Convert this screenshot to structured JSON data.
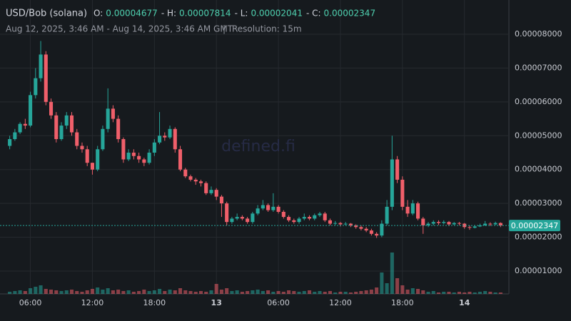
{
  "chart_data": {
    "type": "candlestick",
    "title": "USD/Bob (solana)",
    "stats": [
      {
        "label": "O:",
        "value": 4.677e-05
      },
      {
        "label": "- H:",
        "value": 7.814e-05
      },
      {
        "label": "- L:",
        "value": 2.041e-05
      },
      {
        "label": "- C:",
        "value": 2.347e-05
      }
    ],
    "subtitle": "Aug 12, 2025, 3:46 AM - Aug 14, 2025, 3:46 AM GMT",
    "separator": "|",
    "resolution": "Resolution: 15m",
    "watermark": "defined.fi",
    "last_price": 2.347e-05,
    "up_color": "#26a69a",
    "down_color": "#ef5f6a",
    "xlim": [
      -0.5,
      95.5
    ],
    "xticks": [
      {
        "value": 4,
        "label": "06:00"
      },
      {
        "value": 16,
        "label": "12:00"
      },
      {
        "value": 28,
        "label": "18:00"
      },
      {
        "value": 40,
        "label": "13"
      },
      {
        "value": 52,
        "label": "06:00"
      },
      {
        "value": 64,
        "label": "12:00"
      },
      {
        "value": 76,
        "label": "18:00"
      },
      {
        "value": 88,
        "label": "14"
      }
    ],
    "ylim": [
      3.25e-06,
      8.843e-05
    ],
    "yticks": [
      {
        "value": 1e-05,
        "label": "0.00001000"
      },
      {
        "value": 2e-05,
        "label": "0.00002000"
      },
      {
        "value": 3e-05,
        "label": "0.00003000"
      },
      {
        "value": 4e-05,
        "label": "0.00004000"
      },
      {
        "value": 5e-05,
        "label": "0.00005000"
      },
      {
        "value": 6e-05,
        "label": "0.00006000"
      },
      {
        "value": 7e-05,
        "label": "0.00007000"
      },
      {
        "value": 8e-05,
        "label": "0.00008000"
      }
    ],
    "grid": true,
    "volume_ylim": [
      0,
      100
    ],
    "open": [
      4.7e-05,
      4.9e-05,
      5.1e-05,
      5.35e-05,
      5.3e-05,
      6.2e-05,
      6.7e-05,
      7.4e-05,
      6e-05,
      5.6e-05,
      4.9e-05,
      5.3e-05,
      5.6e-05,
      5.1e-05,
      4.7e-05,
      4.6e-05,
      4.2e-05,
      4e-05,
      4.6e-05,
      5.2e-05,
      5.8e-05,
      5.5e-05,
      4.9e-05,
      4.3e-05,
      4.5e-05,
      4.4e-05,
      4.3e-05,
      4.2e-05,
      4.5e-05,
      4.8e-05,
      5e-05,
      4.95e-05,
      5.2e-05,
      4.6e-05,
      4e-05,
      3.8e-05,
      3.7e-05,
      3.65e-05,
      3.6e-05,
      3.3e-05,
      3.4e-05,
      3.2e-05,
      3e-05,
      2.45e-05,
      2.55e-05,
      2.6e-05,
      2.55e-05,
      2.45e-05,
      2.7e-05,
      2.85e-05,
      2.95e-05,
      2.8e-05,
      2.9e-05,
      2.75e-05,
      2.6e-05,
      2.5e-05,
      2.45e-05,
      2.55e-05,
      2.6e-05,
      2.55e-05,
      2.65e-05,
      2.7e-05,
      2.5e-05,
      2.4e-05,
      2.42e-05,
      2.38e-05,
      2.4e-05,
      2.35e-05,
      2.3e-05,
      2.25e-05,
      2.2e-05,
      2.1e-05,
      2.05e-05,
      2.4e-05,
      2.9e-05,
      4.3e-05,
      3.7e-05,
      2.9e-05,
      2.7e-05,
      3e-05,
      2.55e-05,
      2.35e-05,
      2.4e-05,
      2.45e-05,
      2.42e-05,
      2.45e-05,
      2.38e-05,
      2.42e-05,
      2.4e-05,
      2.3e-05,
      2.28e-05,
      2.32e-05,
      2.35e-05,
      2.4e-05,
      2.38e-05,
      2.42e-05
    ],
    "high": [
      5e-05,
      5.2e-05,
      5.4e-05,
      5.5e-05,
      6.3e-05,
      7e-05,
      7.8e-05,
      7.5e-05,
      6.1e-05,
      5.7e-05,
      5.4e-05,
      5.7e-05,
      5.7e-05,
      5.2e-05,
      4.8e-05,
      4.7e-05,
      4.2e-05,
      4.7e-05,
      5.3e-05,
      6.4e-05,
      5.9e-05,
      5.6e-05,
      4.95e-05,
      4.6e-05,
      4.6e-05,
      4.5e-05,
      4.35e-05,
      4.6e-05,
      4.9e-05,
      5.7e-05,
      5.1e-05,
      5.3e-05,
      5.25e-05,
      4.7e-05,
      4.05e-05,
      3.85e-05,
      3.75e-05,
      3.7e-05,
      3.65e-05,
      3.5e-05,
      3.45e-05,
      3.25e-05,
      3.05e-05,
      2.6e-05,
      2.7e-05,
      2.65e-05,
      2.6e-05,
      2.75e-05,
      2.95e-05,
      3.1e-05,
      3e-05,
      3.3e-05,
      2.95e-05,
      2.8e-05,
      2.65e-05,
      2.55e-05,
      2.6e-05,
      2.7e-05,
      2.65e-05,
      2.7e-05,
      2.75e-05,
      2.75e-05,
      2.55e-05,
      2.48e-05,
      2.45e-05,
      2.45e-05,
      2.42e-05,
      2.38e-05,
      2.35e-05,
      2.3e-05,
      2.25e-05,
      2.15e-05,
      2.5e-05,
      3.1e-05,
      5e-05,
      4.4e-05,
      3.8e-05,
      3.1e-05,
      3.1e-05,
      3.05e-05,
      2.6e-05,
      2.45e-05,
      2.5e-05,
      2.5e-05,
      2.5e-05,
      2.48e-05,
      2.45e-05,
      2.45e-05,
      2.42e-05,
      2.35e-05,
      2.36e-05,
      2.4e-05,
      2.48e-05,
      2.44e-05,
      2.46e-05,
      2.44e-05
    ],
    "low": [
      4.6e-05,
      4.85e-05,
      5.05e-05,
      5.2e-05,
      5.25e-05,
      6.1e-05,
      6.6e-05,
      5.9e-05,
      5.5e-05,
      4.8e-05,
      4.85e-05,
      5.2e-05,
      5e-05,
      4.6e-05,
      4.5e-05,
      4.1e-05,
      3.85e-05,
      3.95e-05,
      4.55e-05,
      5.1e-05,
      5.4e-05,
      4.8e-05,
      4.2e-05,
      4.25e-05,
      4.3e-05,
      4.2e-05,
      4.1e-05,
      4.15e-05,
      4.4e-05,
      4.75e-05,
      4.85e-05,
      4.9e-05,
      4.5e-05,
      3.95e-05,
      3.75e-05,
      3.65e-05,
      3.55e-05,
      3.5e-05,
      3.25e-05,
      3.25e-05,
      3.1e-05,
      2.6e-05,
      2.35e-05,
      2.4e-05,
      2.5e-05,
      2.5e-05,
      2.4e-05,
      2.4e-05,
      2.65e-05,
      2.8e-05,
      2.75e-05,
      2.75e-05,
      2.7e-05,
      2.55e-05,
      2.45e-05,
      2.4e-05,
      2.4e-05,
      2.5e-05,
      2.5e-05,
      2.5e-05,
      2.6e-05,
      2.45e-05,
      2.35e-05,
      2.36e-05,
      2.32e-05,
      2.35e-05,
      2.3e-05,
      2.25e-05,
      2.2e-05,
      2.15e-05,
      2.05e-05,
      1.98e-05,
      2e-05,
      2.35e-05,
      2.8e-05,
      3.6e-05,
      2.8e-05,
      2.6e-05,
      2.65e-05,
      2.5e-05,
      2.1e-05,
      2.3e-05,
      2.35e-05,
      2.36e-05,
      2.38e-05,
      2.33e-05,
      2.36e-05,
      2.35e-05,
      2.25e-05,
      2.22e-05,
      2.26e-05,
      2.3e-05,
      2.34e-05,
      2.33e-05,
      2.36e-05,
      2.3e-05
    ],
    "close": [
      4.9e-05,
      5.1e-05,
      5.35e-05,
      5.3e-05,
      6.2e-05,
      6.7e-05,
      7.4e-05,
      6e-05,
      5.6e-05,
      4.9e-05,
      5.3e-05,
      5.6e-05,
      5.1e-05,
      4.7e-05,
      4.6e-05,
      4.2e-05,
      4e-05,
      4.6e-05,
      5.2e-05,
      5.8e-05,
      5.5e-05,
      4.9e-05,
      4.3e-05,
      4.5e-05,
      4.4e-05,
      4.3e-05,
      4.2e-05,
      4.5e-05,
      4.8e-05,
      5e-05,
      4.95e-05,
      5.2e-05,
      4.6e-05,
      4e-05,
      3.8e-05,
      3.7e-05,
      3.65e-05,
      3.6e-05,
      3.3e-05,
      3.4e-05,
      3.2e-05,
      3e-05,
      2.45e-05,
      2.55e-05,
      2.6e-05,
      2.55e-05,
      2.45e-05,
      2.7e-05,
      2.85e-05,
      2.95e-05,
      2.8e-05,
      2.9e-05,
      2.75e-05,
      2.6e-05,
      2.5e-05,
      2.45e-05,
      2.55e-05,
      2.6e-05,
      2.55e-05,
      2.65e-05,
      2.7e-05,
      2.5e-05,
      2.4e-05,
      2.42e-05,
      2.38e-05,
      2.4e-05,
      2.35e-05,
      2.3e-05,
      2.25e-05,
      2.2e-05,
      2.1e-05,
      2.05e-05,
      2.4e-05,
      2.9e-05,
      4.3e-05,
      3.7e-05,
      2.9e-05,
      2.7e-05,
      3e-05,
      2.55e-05,
      2.35e-05,
      2.4e-05,
      2.45e-05,
      2.42e-05,
      2.45e-05,
      2.38e-05,
      2.42e-05,
      2.4e-05,
      2.3e-05,
      2.28e-05,
      2.32e-05,
      2.35e-05,
      2.4e-05,
      2.38e-05,
      2.42e-05,
      2.347e-05
    ],
    "volume": [
      3,
      4,
      5,
      4,
      8,
      10,
      12,
      7,
      6,
      5,
      4,
      5,
      6,
      4,
      3,
      5,
      7,
      9,
      6,
      8,
      5,
      6,
      4,
      5,
      3,
      4,
      6,
      4,
      5,
      7,
      4,
      6,
      5,
      8,
      5,
      4,
      3,
      4,
      3,
      5,
      14,
      6,
      8,
      4,
      5,
      3,
      4,
      5,
      6,
      4,
      5,
      3,
      4,
      3,
      5,
      4,
      3,
      4,
      5,
      3,
      4,
      3,
      4,
      2,
      3,
      3,
      2,
      3,
      4,
      5,
      6,
      9,
      30,
      15,
      58,
      22,
      12,
      6,
      8,
      7,
      5,
      3,
      4,
      2,
      3,
      3,
      2,
      3,
      2,
      3,
      2,
      3,
      4,
      3,
      2,
      2
    ]
  }
}
